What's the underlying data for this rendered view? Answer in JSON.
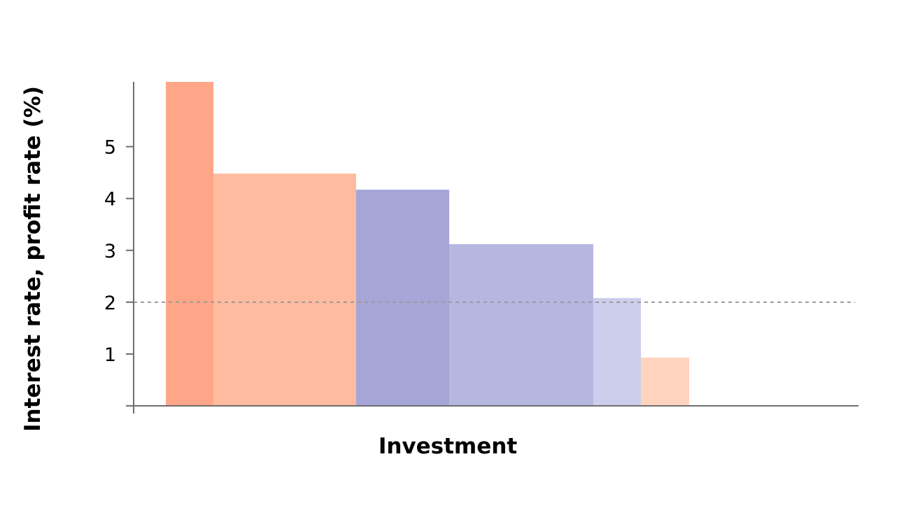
{
  "chart_data": {
    "type": "bar",
    "title": "",
    "xlabel": "Investment",
    "ylabel": "Interest rate, profit rate (%)",
    "ylim": [
      0,
      6.25
    ],
    "y_ticks": [
      1,
      2,
      3,
      4,
      5
    ],
    "y_tick_labels": [
      "1",
      "2",
      "3",
      "4",
      "5"
    ],
    "x_tick_labels": [],
    "grid": false,
    "bar_style": "variable-width adjacent blocks",
    "reference_line": {
      "y": 2,
      "style": "dashed",
      "color": "#9a9a9a"
    },
    "bars": [
      {
        "value": 6.25,
        "width": 0.68,
        "color": "#ffa688"
      },
      {
        "value": 4.48,
        "width": 2.04,
        "color": "#ffbb9f"
      },
      {
        "value": 4.17,
        "width": 1.33,
        "color": "#a6a5d8"
      },
      {
        "value": 3.12,
        "width": 2.06,
        "color": "#b6b7e0"
      },
      {
        "value": 2.08,
        "width": 0.68,
        "color": "#cdceec"
      },
      {
        "value": 0.93,
        "width": 0.69,
        "color": "#ffd3bd"
      }
    ]
  },
  "colors": {
    "axis": "#6e6e6e",
    "text": "#000000"
  }
}
